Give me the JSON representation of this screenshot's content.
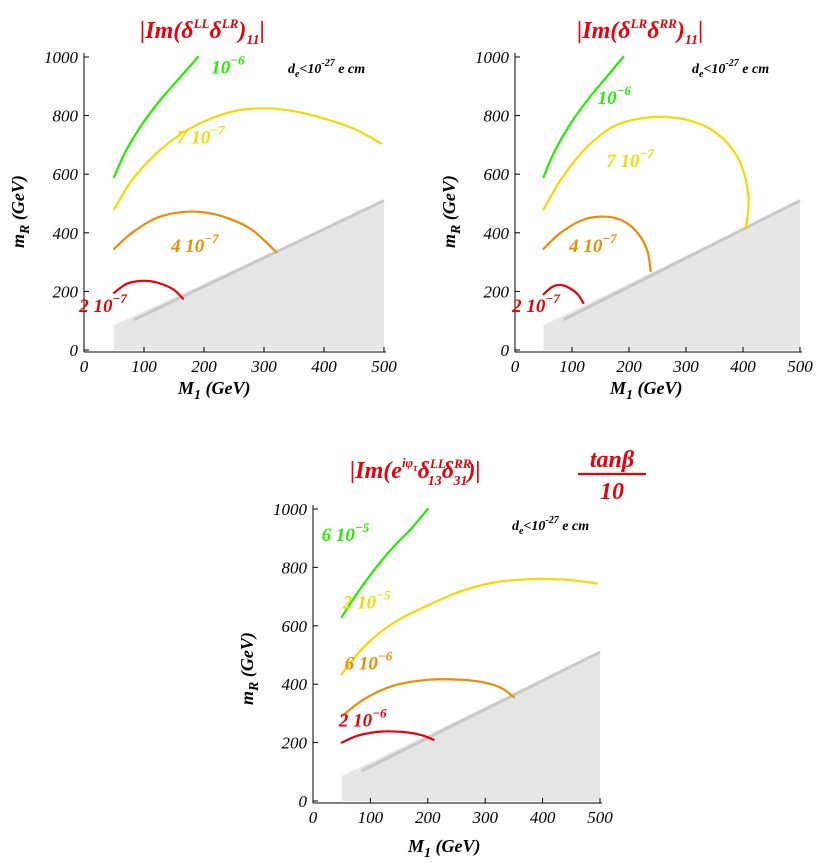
{
  "colors": {
    "title": "#e8000b",
    "excluded_region": "#e6e6e6",
    "excluded_edge": "#c8c8c8"
  },
  "chart_data": [
    {
      "type": "line",
      "title": "|Im(δLLδLR)11|",
      "title_parts": {
        "lead": "|Im(δ",
        "s1": "LL",
        "mid": "δ",
        "s2": "LR",
        "close": ")",
        "sub": "11",
        "tail": "|"
      },
      "xlabel": "M1 (GeV)",
      "xlabel_parts": {
        "main": "M",
        "sub": "1",
        "rest": " (GeV)"
      },
      "ylabel": "mR (GeV)",
      "ylabel_parts": {
        "main": "m",
        "sub": "R",
        "rest": " (GeV)"
      },
      "xlim": [
        0,
        500
      ],
      "ylim": [
        0,
        1000
      ],
      "xticks": [
        "0",
        "100",
        "200",
        "300",
        "400",
        "500"
      ],
      "yticks": [
        "0",
        "200",
        "400",
        "600",
        "800",
        "1000"
      ],
      "constraint": {
        "text": "d",
        "sub": "e",
        "mid": "<10",
        "sup": "-27",
        "tail": " e cm"
      },
      "excluded_region": {
        "x": [
          50,
          500
        ],
        "y_upper": [
          85,
          510
        ]
      },
      "series": [
        {
          "color": "#22ee00",
          "label_main": "10",
          "label_sup": "−6",
          "label_at": [
            212,
            943
          ],
          "points": [
            [
              50,
              590
            ],
            [
              70,
              680
            ],
            [
              100,
              780
            ],
            [
              130,
              860
            ],
            [
              160,
              930
            ],
            [
              190,
              1000
            ]
          ]
        },
        {
          "color": "#f2da00",
          "label_main": "7 10",
          "label_sup": "−7",
          "label_at": [
            155,
            705
          ],
          "points": [
            [
              50,
              480
            ],
            [
              80,
              580
            ],
            [
              120,
              670
            ],
            [
              160,
              735
            ],
            [
              200,
              780
            ],
            [
              250,
              815
            ],
            [
              300,
              825
            ],
            [
              350,
              815
            ],
            [
              400,
              790
            ],
            [
              450,
              755
            ],
            [
              495,
              705
            ]
          ]
        },
        {
          "color": "#f08a00",
          "label_main": "4 10",
          "label_sup": "−7",
          "label_at": [
            145,
            335
          ],
          "points": [
            [
              50,
              345
            ],
            [
              80,
              400
            ],
            [
              120,
              450
            ],
            [
              160,
              470
            ],
            [
              200,
              470
            ],
            [
              240,
              450
            ],
            [
              280,
              410
            ],
            [
              320,
              335
            ]
          ]
        },
        {
          "color": "#e8000b",
          "label_main": "2 10",
          "label_sup": "−7",
          "label_at": [
            -8,
            130
          ],
          "points": [
            [
              50,
              195
            ],
            [
              70,
              225
            ],
            [
              90,
              235
            ],
            [
              110,
              235
            ],
            [
              130,
              225
            ],
            [
              150,
              205
            ],
            [
              165,
              175
            ]
          ]
        }
      ]
    },
    {
      "type": "line",
      "title": "|Im(δLRδRR)11|",
      "title_parts": {
        "lead": "|Im(δ",
        "s1": "LR",
        "mid": "δ",
        "s2": "RR",
        "close": ")",
        "sub": "11",
        "tail": "|"
      },
      "xlabel": "M1 (GeV)",
      "xlabel_parts": {
        "main": "M",
        "sub": "1",
        "rest": " (GeV)"
      },
      "ylabel": "mR (GeV)",
      "ylabel_parts": {
        "main": "m",
        "sub": "R",
        "rest": " (GeV)"
      },
      "xlim": [
        0,
        500
      ],
      "ylim": [
        0,
        1000
      ],
      "xticks": [
        "0",
        "100",
        "200",
        "300",
        "400",
        "500"
      ],
      "yticks": [
        "0",
        "200",
        "400",
        "600",
        "800",
        "1000"
      ],
      "constraint": {
        "text": "d",
        "sub": "e",
        "mid": "<10",
        "sup": "-27",
        "tail": " e cm"
      },
      "excluded_region": {
        "x": [
          50,
          500
        ],
        "y_upper": [
          85,
          510
        ]
      },
      "series": [
        {
          "color": "#22ee00",
          "label_main": "10",
          "label_sup": "−6",
          "label_at": [
            145,
            840
          ],
          "points": [
            [
              50,
              590
            ],
            [
              70,
              680
            ],
            [
              100,
              780
            ],
            [
              130,
              860
            ],
            [
              160,
              930
            ],
            [
              190,
              1000
            ]
          ]
        },
        {
          "color": "#f2da00",
          "label_main": "7 10",
          "label_sup": "−7",
          "label_at": [
            160,
            625
          ],
          "points": [
            [
              50,
              480
            ],
            [
              80,
              580
            ],
            [
              120,
              680
            ],
            [
              170,
              760
            ],
            [
              220,
              790
            ],
            [
              270,
              795
            ],
            [
              320,
              775
            ],
            [
              360,
              730
            ],
            [
              390,
              660
            ],
            [
              405,
              580
            ],
            [
              410,
              500
            ],
            [
              405,
              415
            ]
          ]
        },
        {
          "color": "#f08a00",
          "label_main": "4 10",
          "label_sup": "−7",
          "label_at": [
            95,
            335
          ],
          "points": [
            [
              50,
              345
            ],
            [
              80,
              400
            ],
            [
              120,
              445
            ],
            [
              160,
              455
            ],
            [
              190,
              440
            ],
            [
              215,
              400
            ],
            [
              232,
              340
            ],
            [
              238,
              270
            ]
          ]
        },
        {
          "color": "#e8000b",
          "label_main": "2 10",
          "label_sup": "−7",
          "label_at": [
            -5,
            130
          ],
          "points": [
            [
              50,
              190
            ],
            [
              65,
              215
            ],
            [
              80,
              222
            ],
            [
              95,
              212
            ],
            [
              110,
              190
            ],
            [
              120,
              160
            ]
          ]
        }
      ]
    },
    {
      "type": "line",
      "title": "|Im(eiφτδLL13δRR31)| tanβ/10",
      "title_parts": {
        "lead": "|Im(e",
        "esup": "iφ",
        "esupsub": "τ",
        "d1": "δ",
        "s1": "LL",
        "b1": "13",
        "d2": "δ",
        "s2": "RR",
        "b2": "31",
        "close": ")|",
        "num": "tanβ",
        "den": "10"
      },
      "xlabel": "M1 (GeV)",
      "xlabel_parts": {
        "main": "M",
        "sub": "1",
        "rest": " (GeV)"
      },
      "ylabel": "mR (GeV)",
      "ylabel_parts": {
        "main": "m",
        "sub": "R",
        "rest": " (GeV)"
      },
      "xlim": [
        0,
        500
      ],
      "ylim": [
        0,
        1000
      ],
      "xticks": [
        "0",
        "100",
        "200",
        "300",
        "400",
        "500"
      ],
      "yticks": [
        "0",
        "200",
        "400",
        "600",
        "800",
        "1000"
      ],
      "constraint": {
        "text": "d",
        "sub": "e",
        "mid": "<10",
        "sup": "-27",
        "tail": " e cm"
      },
      "excluded_region": {
        "x": [
          50,
          500
        ],
        "y_upper": [
          85,
          510
        ]
      },
      "series": [
        {
          "color": "#22ee00",
          "label_main": "6 10",
          "label_sup": "−5",
          "label_at": [
            15,
            890
          ],
          "points": [
            [
              50,
              630
            ],
            [
              80,
              720
            ],
            [
              110,
              800
            ],
            [
              140,
              870
            ],
            [
              170,
              930
            ],
            [
              200,
              1000
            ]
          ]
        },
        {
          "color": "#f2da00",
          "label_main": "2 10",
          "label_sup": "−5",
          "label_at": [
            52,
            660
          ],
          "points": [
            [
              50,
              435
            ],
            [
              90,
              530
            ],
            [
              140,
              610
            ],
            [
              200,
              670
            ],
            [
              260,
              720
            ],
            [
              320,
              750
            ],
            [
              380,
              760
            ],
            [
              440,
              758
            ],
            [
              495,
              745
            ]
          ]
        },
        {
          "color": "#f08a00",
          "label_main": "6  10",
          "label_sup": "−6",
          "label_at": [
            55,
            450
          ],
          "points": [
            [
              50,
              290
            ],
            [
              90,
              350
            ],
            [
              140,
              395
            ],
            [
              200,
              415
            ],
            [
              260,
              415
            ],
            [
              300,
              405
            ],
            [
              330,
              385
            ],
            [
              350,
              355
            ]
          ]
        },
        {
          "color": "#e8000b",
          "label_main": "2 10",
          "label_sup": "−6",
          "label_at": [
            45,
            255
          ],
          "points": [
            [
              50,
              200
            ],
            [
              80,
              225
            ],
            [
              120,
              238
            ],
            [
              160,
              236
            ],
            [
              190,
              225
            ],
            [
              210,
              210
            ]
          ]
        }
      ]
    }
  ]
}
